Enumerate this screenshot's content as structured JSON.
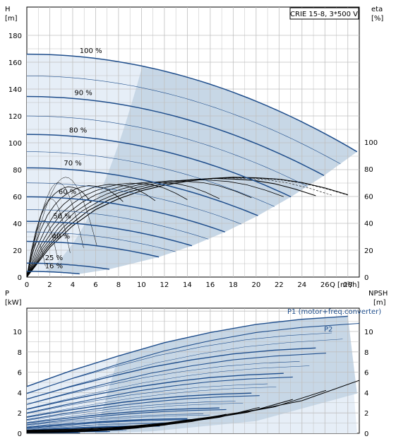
{
  "chart_data": [
    {
      "type": "line",
      "panel": "head",
      "legend_box": "CRIE 15-8, 3*500 V",
      "ylabel_left": [
        "H",
        "[m]"
      ],
      "ylabel_right": [
        "eta",
        "[%]"
      ],
      "xlabel": "Q [m³/h]",
      "xlim": [
        0,
        29
      ],
      "x_ticks": [
        "0",
        "2",
        "4",
        "6",
        "8",
        "10",
        "12",
        "14",
        "16",
        "18",
        "20",
        "22",
        "24",
        "26",
        "28"
      ],
      "ylim": [
        0,
        190
      ],
      "y_ticks": [
        "0",
        "20",
        "40",
        "60",
        "80",
        "100",
        "120",
        "140",
        "160",
        "180"
      ],
      "y2_ticks": [
        "0",
        "20",
        "40",
        "60",
        "80",
        "100"
      ],
      "grid": true,
      "colors": {
        "curve": "#1f4e8c",
        "area": "#c7d7e6",
        "area_light": "#e6eef7",
        "eff": "#000000"
      },
      "speed_curves": [
        {
          "label": "100 %",
          "speed": 1.0
        },
        {
          "label": "90 %",
          "speed": 0.9
        },
        {
          "label": "80 %",
          "speed": 0.8
        },
        {
          "label": "70 %",
          "speed": 0.7
        },
        {
          "label": "60 %",
          "speed": 0.6
        },
        {
          "label": "50 %",
          "speed": 0.5
        },
        {
          "label": "40 %",
          "speed": 0.4
        },
        {
          "label": "25 %",
          "speed": 0.25
        },
        {
          "label": "16 %",
          "speed": 0.16
        }
      ],
      "intermediate_speeds": [
        0.95,
        0.85,
        0.75,
        0.65,
        0.55,
        0.45
      ],
      "head_curve_full_speed": {
        "h0": 166,
        "a": 0.003,
        "b": 0.0875,
        "q_max": 28.8
      },
      "efficiency_curve_full_speed": {
        "points": [
          [
            0,
            0
          ],
          [
            2,
            22
          ],
          [
            4,
            38
          ],
          [
            6,
            50
          ],
          [
            8,
            58
          ],
          [
            10,
            64
          ],
          [
            12,
            68
          ],
          [
            14,
            71
          ],
          [
            16,
            73
          ],
          [
            18,
            74
          ],
          [
            20,
            73.5
          ],
          [
            22,
            72.5
          ],
          [
            24,
            70
          ],
          [
            26,
            66
          ],
          [
            28,
            61
          ]
        ],
        "eta_max": 74
      },
      "efficiency_speeds": [
        1.0,
        0.9,
        0.8,
        0.7,
        0.6,
        0.5,
        0.4,
        0.3,
        0.2
      ]
    },
    {
      "type": "line",
      "panel": "power",
      "ylabel_left": [
        "P",
        "[kW]"
      ],
      "ylabel_right": [
        "NPSH",
        "[m]"
      ],
      "ylim": [
        0,
        12
      ],
      "y_ticks": [
        "0",
        "2",
        "4",
        "6",
        "8",
        "10"
      ],
      "y2_ticks": [
        "0",
        "2",
        "4",
        "6",
        "8",
        "10"
      ],
      "series_labels": [
        "P1 (motor+freq.converter)",
        "P2"
      ],
      "grid": true,
      "power_curve_full_speed": {
        "p1": [
          [
            0,
            4.6
          ],
          [
            4,
            6.2
          ],
          [
            8,
            7.6
          ],
          [
            12,
            8.9
          ],
          [
            16,
            9.9
          ],
          [
            20,
            10.7
          ],
          [
            24,
            11.2
          ],
          [
            28,
            11.5
          ]
        ],
        "p2": [
          [
            0,
            3.9
          ],
          [
            4,
            5.4
          ],
          [
            8,
            6.8
          ],
          [
            12,
            8.1
          ],
          [
            16,
            9.1
          ],
          [
            20,
            9.9
          ],
          [
            24,
            10.4
          ],
          [
            29,
            10.8
          ]
        ]
      },
      "npsh_points": [
        [
          0,
          0.3
        ],
        [
          4,
          0.4
        ],
        [
          8,
          0.6
        ],
        [
          12,
          1.0
        ],
        [
          16,
          1.6
        ],
        [
          20,
          2.3
        ],
        [
          24,
          3.2
        ],
        [
          29,
          5.2
        ]
      ]
    }
  ]
}
